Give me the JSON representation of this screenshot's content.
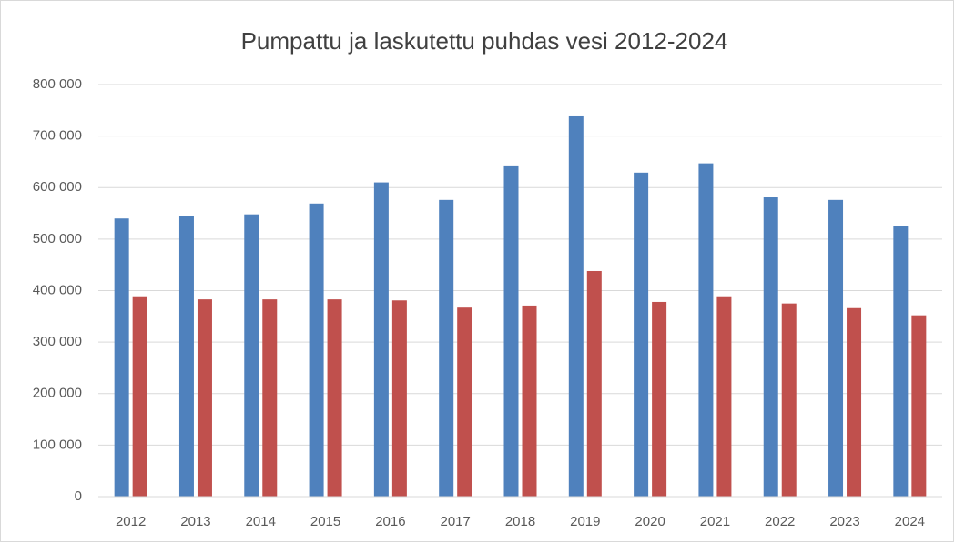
{
  "chart_data": {
    "type": "bar",
    "title": "Pumpattu  ja laskutettu puhdas vesi 2012-2024",
    "categories": [
      "2012",
      "2013",
      "2014",
      "2015",
      "2016",
      "2017",
      "2018",
      "2019",
      "2020",
      "2021",
      "2022",
      "2023",
      "2024"
    ],
    "series": [
      {
        "color": "#4f81bd",
        "values": [
          540000,
          544000,
          548000,
          569000,
          610000,
          576000,
          643000,
          740000,
          629000,
          647000,
          581000,
          576000,
          526000
        ]
      },
      {
        "color": "#c0504d",
        "values": [
          389000,
          383000,
          383000,
          383000,
          381000,
          367000,
          371000,
          438000,
          378000,
          389000,
          375000,
          366000,
          352000
        ]
      }
    ],
    "ylim": [
      0,
      800000
    ],
    "yticks": [
      0,
      {
        "value": 100000,
        "label": "100 000"
      },
      {
        "value": 200000,
        "label": "200 000"
      },
      {
        "value": 300000,
        "label": "300 000"
      },
      {
        "value": 400000,
        "label": "400 000"
      },
      {
        "value": 500000,
        "label": "500 000"
      },
      {
        "value": 600000,
        "label": "600 000"
      },
      {
        "value": 700000,
        "label": "700 000"
      },
      {
        "value": 800000,
        "label": "800 000"
      }
    ],
    "grid": true
  }
}
